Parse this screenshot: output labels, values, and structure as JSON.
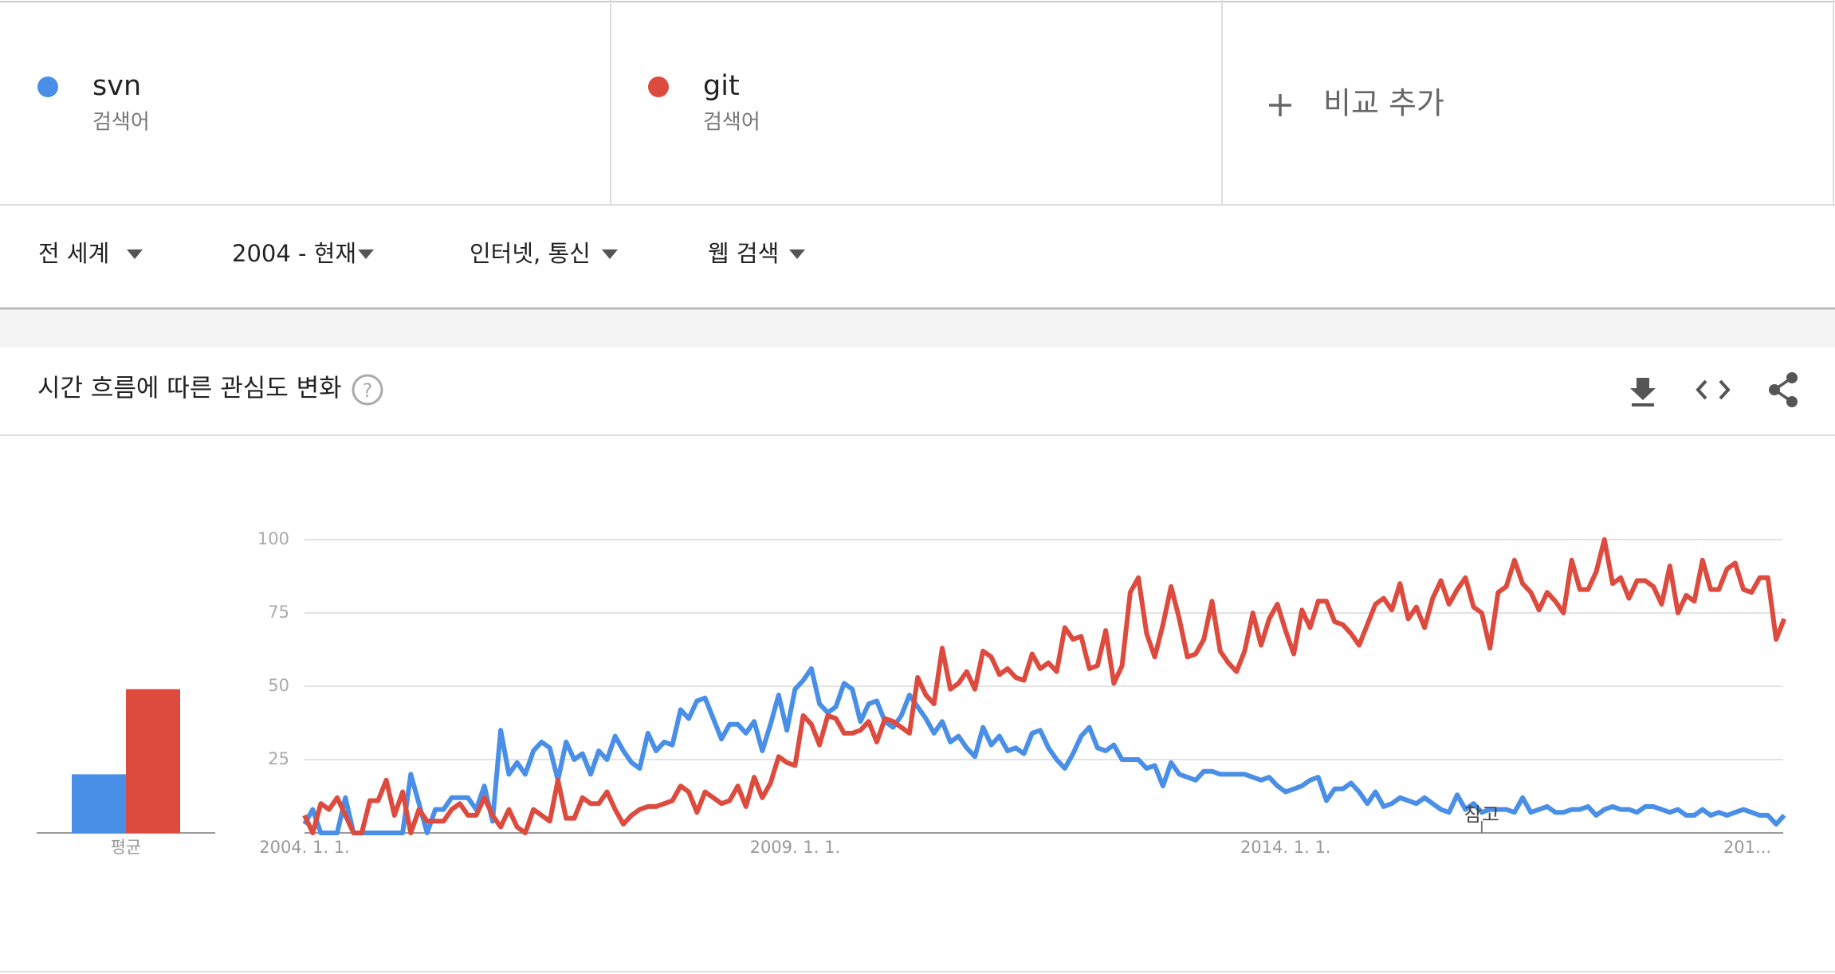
{
  "legend_sub": [
    "검색어",
    "검색어"
  ],
  "add_compare": "비교 추가",
  "filters": [
    "전 세계",
    "2004 - 현재",
    "인터넷, 통신",
    "웹 검색"
  ],
  "section_title": "시간 흐름에 따른 관심도 변화",
  "chart_data": [
    {
      "type": "line",
      "categories": [
        "2004-01",
        "2004-02",
        "2004-03",
        "2004-04",
        "2004-05",
        "2004-06",
        "2004-07",
        "2004-08",
        "2004-09",
        "2004-10",
        "2004-11",
        "2004-12",
        "2005-01",
        "2005-02",
        "2005-03",
        "2005-04",
        "2005-05",
        "2005-06",
        "2005-07",
        "2005-08",
        "2005-09",
        "2005-10",
        "2005-11",
        "2005-12",
        "2006-01",
        "2006-02",
        "2006-03",
        "2006-04",
        "2006-05",
        "2006-06",
        "2006-07",
        "2006-08",
        "2006-09",
        "2006-10",
        "2006-11",
        "2006-12",
        "2007-01",
        "2007-02",
        "2007-03",
        "2007-04",
        "2007-05",
        "2007-06",
        "2007-07",
        "2007-08",
        "2007-09",
        "2007-10",
        "2007-11",
        "2007-12",
        "2008-01",
        "2008-02",
        "2008-03",
        "2008-04",
        "2008-05",
        "2008-06",
        "2008-07",
        "2008-08",
        "2008-09",
        "2008-10",
        "2008-11",
        "2008-12",
        "2009-01",
        "2009-02",
        "2009-03",
        "2009-04",
        "2009-05",
        "2009-06",
        "2009-07",
        "2009-08",
        "2009-09",
        "2009-10",
        "2009-11",
        "2009-12",
        "2010-01",
        "2010-02",
        "2010-03",
        "2010-04",
        "2010-05",
        "2010-06",
        "2010-07",
        "2010-08",
        "2010-09",
        "2010-10",
        "2010-11",
        "2010-12",
        "2011-01",
        "2011-02",
        "2011-03",
        "2011-04",
        "2011-05",
        "2011-06",
        "2011-07",
        "2011-08",
        "2011-09",
        "2011-10",
        "2011-11",
        "2011-12",
        "2012-01",
        "2012-02",
        "2012-03",
        "2012-04",
        "2012-05",
        "2012-06",
        "2012-07",
        "2012-08",
        "2012-09",
        "2012-10",
        "2012-11",
        "2012-12",
        "2013-01",
        "2013-02",
        "2013-03",
        "2013-04",
        "2013-05",
        "2013-06",
        "2013-07",
        "2013-08",
        "2013-09",
        "2013-10",
        "2013-11",
        "2013-12",
        "2014-01",
        "2014-02",
        "2014-03",
        "2014-04",
        "2014-05",
        "2014-06",
        "2014-07",
        "2014-08",
        "2014-09",
        "2014-10",
        "2014-11",
        "2014-12",
        "2015-01",
        "2015-02",
        "2015-03",
        "2015-04",
        "2015-05",
        "2015-06",
        "2015-07",
        "2015-08",
        "2015-09",
        "2015-10",
        "2015-11",
        "2015-12",
        "2016-01",
        "2016-02",
        "2016-03",
        "2016-04",
        "2016-05",
        "2016-06",
        "2016-07",
        "2016-08",
        "2016-09",
        "2016-10",
        "2016-11",
        "2016-12",
        "2017-01",
        "2017-02",
        "2017-03",
        "2017-04",
        "2017-05",
        "2017-06",
        "2017-07",
        "2017-08",
        "2017-09",
        "2017-10",
        "2017-11",
        "2017-12",
        "2018-01",
        "2018-02",
        "2018-03",
        "2018-04",
        "2018-05",
        "2018-06",
        "2018-07",
        "2018-08",
        "2018-09",
        "2018-10",
        "2018-11",
        "2018-12",
        "2019-01",
        "2019-02"
      ],
      "series": [
        {
          "name": "svn",
          "color": "#4a8fe7",
          "values": [
            3,
            8,
            0,
            0,
            0,
            12,
            0,
            0,
            0,
            0,
            0,
            0,
            0,
            20,
            10,
            0,
            8,
            8,
            12,
            12,
            12,
            8,
            16,
            4,
            35,
            20,
            24,
            20,
            28,
            31,
            29,
            18,
            31,
            25,
            27,
            20,
            28,
            25,
            33,
            28,
            24,
            22,
            34,
            28,
            31,
            30,
            42,
            39,
            45,
            46,
            39,
            32,
            37,
            37,
            34,
            38,
            28,
            37,
            47,
            35,
            49,
            52,
            56,
            44,
            41,
            43,
            51,
            49,
            38,
            44,
            45,
            38,
            36,
            40,
            47,
            43,
            39,
            34,
            38,
            31,
            33,
            29,
            26,
            36,
            30,
            33,
            28,
            29,
            27,
            34,
            35,
            29,
            25,
            22,
            27,
            33,
            36,
            29,
            28,
            30,
            25,
            25,
            25,
            22,
            23,
            16,
            24,
            20,
            19,
            18,
            21,
            21,
            20,
            20,
            20,
            20,
            19,
            18,
            19,
            16,
            14,
            15,
            16,
            18,
            19,
            11,
            15,
            15,
            17,
            14,
            10,
            14,
            9,
            10,
            12,
            11,
            10,
            12,
            10,
            8,
            7,
            13,
            8,
            10,
            7,
            8,
            8,
            8,
            7,
            12,
            7,
            8,
            9,
            7,
            7,
            8,
            8,
            9,
            6,
            8,
            9,
            8,
            8,
            7,
            9,
            9,
            8,
            7,
            8,
            6,
            6,
            8,
            6,
            7,
            6,
            7,
            8,
            7,
            6,
            6,
            3,
            6
          ]
        },
        {
          "name": "git",
          "color": "#dd4b3e",
          "values": [
            6,
            0,
            10,
            8,
            12,
            6,
            0,
            0,
            11,
            11,
            18,
            6,
            14,
            0,
            8,
            4,
            4,
            4,
            8,
            10,
            6,
            6,
            12,
            6,
            2,
            8,
            2,
            0,
            8,
            6,
            4,
            18,
            5,
            5,
            12,
            10,
            10,
            14,
            8,
            3,
            6,
            8,
            9,
            9,
            10,
            11,
            16,
            14,
            7,
            14,
            12,
            10,
            11,
            16,
            9,
            19,
            12,
            17,
            26,
            24,
            23,
            40,
            37,
            30,
            40,
            39,
            34,
            34,
            35,
            38,
            31,
            39,
            38,
            36,
            34,
            53,
            47,
            44,
            63,
            49,
            51,
            55,
            49,
            62,
            60,
            54,
            56,
            53,
            52,
            61,
            56,
            58,
            55,
            70,
            66,
            67,
            56,
            57,
            69,
            51,
            57,
            82,
            87,
            68,
            60,
            71,
            84,
            73,
            60,
            61,
            66,
            79,
            62,
            58,
            55,
            62,
            75,
            64,
            73,
            78,
            69,
            61,
            76,
            70,
            79,
            79,
            72,
            71,
            68,
            64,
            71,
            78,
            80,
            76,
            85,
            73,
            77,
            70,
            80,
            86,
            78,
            83,
            87,
            77,
            75,
            63,
            82,
            84,
            93,
            85,
            82,
            76,
            82,
            79,
            75,
            93,
            83,
            83,
            89,
            100,
            85,
            87,
            80,
            86,
            86,
            84,
            78,
            91,
            75,
            81,
            79,
            93,
            83,
            83,
            90,
            92,
            83,
            82,
            87,
            87,
            66,
            73
          ]
        }
      ],
      "ylim": [
        0,
        100
      ],
      "yticks": [
        25,
        50,
        75,
        100
      ],
      "grid": true,
      "xticks": [
        {
          "value": "2004-01",
          "label": "2004. 1. 1."
        },
        {
          "value": "2009-01",
          "label": "2009. 1. 1."
        },
        {
          "value": "2014-01",
          "label": "2014. 1. 1."
        },
        {
          "value": "2019-01",
          "label": "201..."
        }
      ],
      "annotations": [
        {
          "x": "2016-01",
          "text": "참고"
        }
      ]
    },
    {
      "type": "bar",
      "categories": [
        "평균"
      ],
      "ylim": [
        0,
        100
      ],
      "series": [
        {
          "color": "#4a8fe7",
          "values": [
            20
          ]
        },
        {
          "color": "#dd4b3e",
          "values": [
            49
          ]
        }
      ]
    }
  ]
}
